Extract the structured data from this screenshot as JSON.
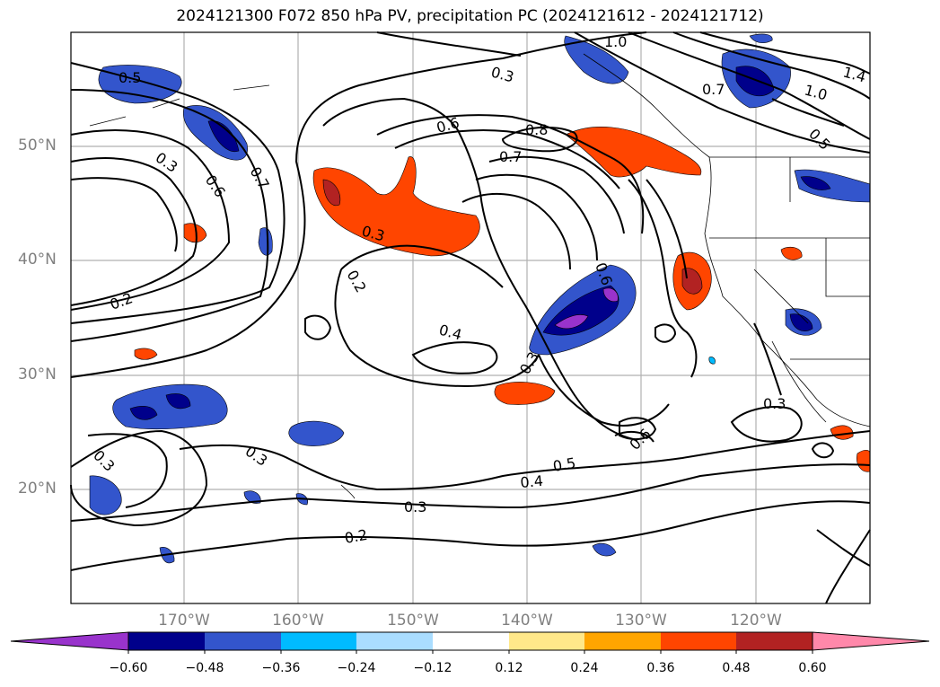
{
  "title": "2024121300 F072 850 hPa PV, precipitation PC (2024121612 - 2024121712)",
  "map": {
    "projection": "cylindrical",
    "lon_range": [
      180,
      110
    ],
    "lat_range": [
      10,
      60
    ],
    "lat_labels": [
      {
        "text": "50°N",
        "lat": 50
      },
      {
        "text": "40°N",
        "lat": 40
      },
      {
        "text": "30°N",
        "lat": 30
      },
      {
        "text": "20°N",
        "lat": 20
      }
    ],
    "lon_labels": [
      {
        "text": "170°W",
        "lon": 170
      },
      {
        "text": "160°W",
        "lon": 160
      },
      {
        "text": "150°W",
        "lon": 150
      },
      {
        "text": "140°W",
        "lon": 140
      },
      {
        "text": "130°W",
        "lon": 130
      },
      {
        "text": "120°W",
        "lon": 120
      }
    ],
    "grid": true,
    "contour_labels": [
      "0.5",
      "0.6",
      "0.3",
      "1.0",
      "1.4",
      "0.7",
      "0.3",
      "0.6",
      "0.8",
      "0.7",
      "0.7",
      "0.3",
      "0.6",
      "0.2",
      "0.2",
      "0.4",
      "0.3",
      "0.3",
      "0.5",
      "0.6",
      "0.4",
      "0.3",
      "0.2",
      "0.3",
      "0.3",
      "1.0",
      "0.5"
    ]
  },
  "colorbar": {
    "ticks": [
      "−0.60",
      "−0.48",
      "−0.36",
      "−0.24",
      "−0.12",
      "0.12",
      "0.24",
      "0.36",
      "0.48",
      "0.60"
    ],
    "colors": [
      "#9933cc",
      "#00008b",
      "#3355cc",
      "#00bbff",
      "#aaddff",
      "#ffffff",
      "#ffe88a",
      "#ffa500",
      "#ff4500",
      "#b22222",
      "#ff88aa"
    ]
  }
}
